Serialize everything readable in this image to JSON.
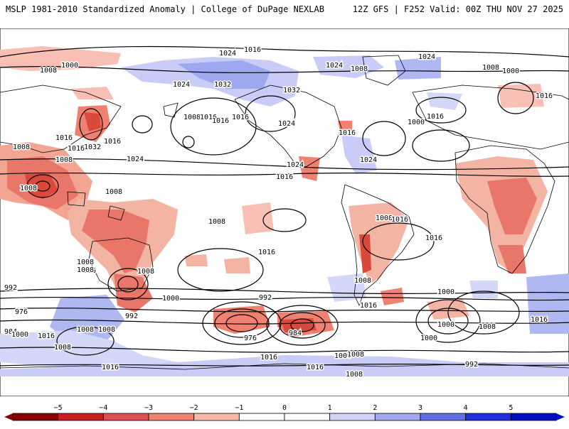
{
  "header": {
    "title_left": "MSLP 1981-2010 Standardized Anomaly | College of DuPage NEXLAB",
    "title_right": "12Z GFS | F252 Valid: 00Z THU NOV 27 2025"
  },
  "colorbar": {
    "ticks": [
      "−5",
      "−4",
      "−3",
      "−2",
      "−1",
      "0",
      "1",
      "2",
      "3",
      "4",
      "5"
    ],
    "colors": [
      "#8b0000",
      "#c81e1e",
      "#e05050",
      "#f08070",
      "#f8b8a8",
      "#ffffff",
      "#ffffff",
      "#d0d4f8",
      "#a0a8f0",
      "#6070e8",
      "#2030e0",
      "#0010c0"
    ]
  },
  "map": {
    "contour_color": "#000000",
    "coastline_color": "#000000",
    "isobar_labels": [
      "1016",
      "1024",
      "1000",
      "1024",
      "1008",
      "1008",
      "1000",
      "1008",
      "1024",
      "1032",
      "1024",
      "1032",
      "1008",
      "1016",
      "1016",
      "1016",
      "1024",
      "1016",
      "1032",
      "1016",
      "1016",
      "1024",
      "1016",
      "1024",
      "1008",
      "1024",
      "1016",
      "1000",
      "1016",
      "1016",
      "1008",
      "1008",
      "1008",
      "1016",
      "1008",
      "1016",
      "1008",
      "1016",
      "1016",
      "1008",
      "1016",
      "1008",
      "1000",
      "1000",
      "992",
      "992",
      "984",
      "976",
      "976",
      "984",
      "992",
      "1000",
      "1000",
      "1000",
      "1008",
      "1008",
      "1016",
      "1008",
      "1016",
      "992",
      "1000",
      "1016",
      "1008",
      "1016",
      "1016",
      "1008",
      "1008",
      "1008",
      "1008"
    ]
  }
}
